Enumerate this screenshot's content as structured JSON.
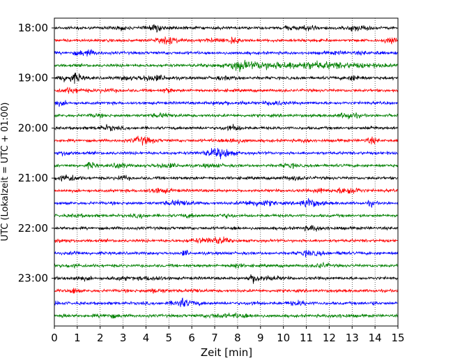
{
  "chart_data": {
    "type": "line",
    "title": "",
    "xlabel": "Zeit  [min]",
    "ylabel": "UTC (Lokalzeit = UTC + 01:00)",
    "xlim": [
      0,
      15
    ],
    "x_ticks": [
      "0",
      "1",
      "2",
      "3",
      "4",
      "5",
      "6",
      "7",
      "8",
      "9",
      "10",
      "11",
      "12",
      "13",
      "14",
      "15"
    ],
    "y_ticks": [
      "18:00",
      "19:00",
      "20:00",
      "21:00",
      "22:00",
      "23:00"
    ],
    "grid": "vertical dotted",
    "trace_colors": [
      "#000000",
      "#ff0000",
      "#0000ff",
      "#008000"
    ],
    "traces": [
      {
        "start": "18:00",
        "color": "#000000"
      },
      {
        "start": "18:15",
        "color": "#ff0000"
      },
      {
        "start": "18:30",
        "color": "#0000ff"
      },
      {
        "start": "18:45",
        "color": "#008000"
      },
      {
        "start": "19:00",
        "color": "#000000"
      },
      {
        "start": "19:15",
        "color": "#ff0000"
      },
      {
        "start": "19:30",
        "color": "#0000ff"
      },
      {
        "start": "19:45",
        "color": "#008000"
      },
      {
        "start": "20:00",
        "color": "#000000"
      },
      {
        "start": "20:15",
        "color": "#ff0000"
      },
      {
        "start": "20:30",
        "color": "#0000ff"
      },
      {
        "start": "20:45",
        "color": "#008000"
      },
      {
        "start": "21:00",
        "color": "#000000"
      },
      {
        "start": "21:15",
        "color": "#ff0000"
      },
      {
        "start": "21:30",
        "color": "#0000ff"
      },
      {
        "start": "21:45",
        "color": "#008000"
      },
      {
        "start": "22:00",
        "color": "#000000"
      },
      {
        "start": "22:15",
        "color": "#ff0000"
      },
      {
        "start": "22:30",
        "color": "#0000ff"
      },
      {
        "start": "22:45",
        "color": "#008000"
      },
      {
        "start": "23:00",
        "color": "#000000"
      },
      {
        "start": "23:15",
        "color": "#ff0000"
      },
      {
        "start": "23:30",
        "color": "#0000ff"
      },
      {
        "start": "23:45",
        "color": "#008000"
      }
    ]
  }
}
